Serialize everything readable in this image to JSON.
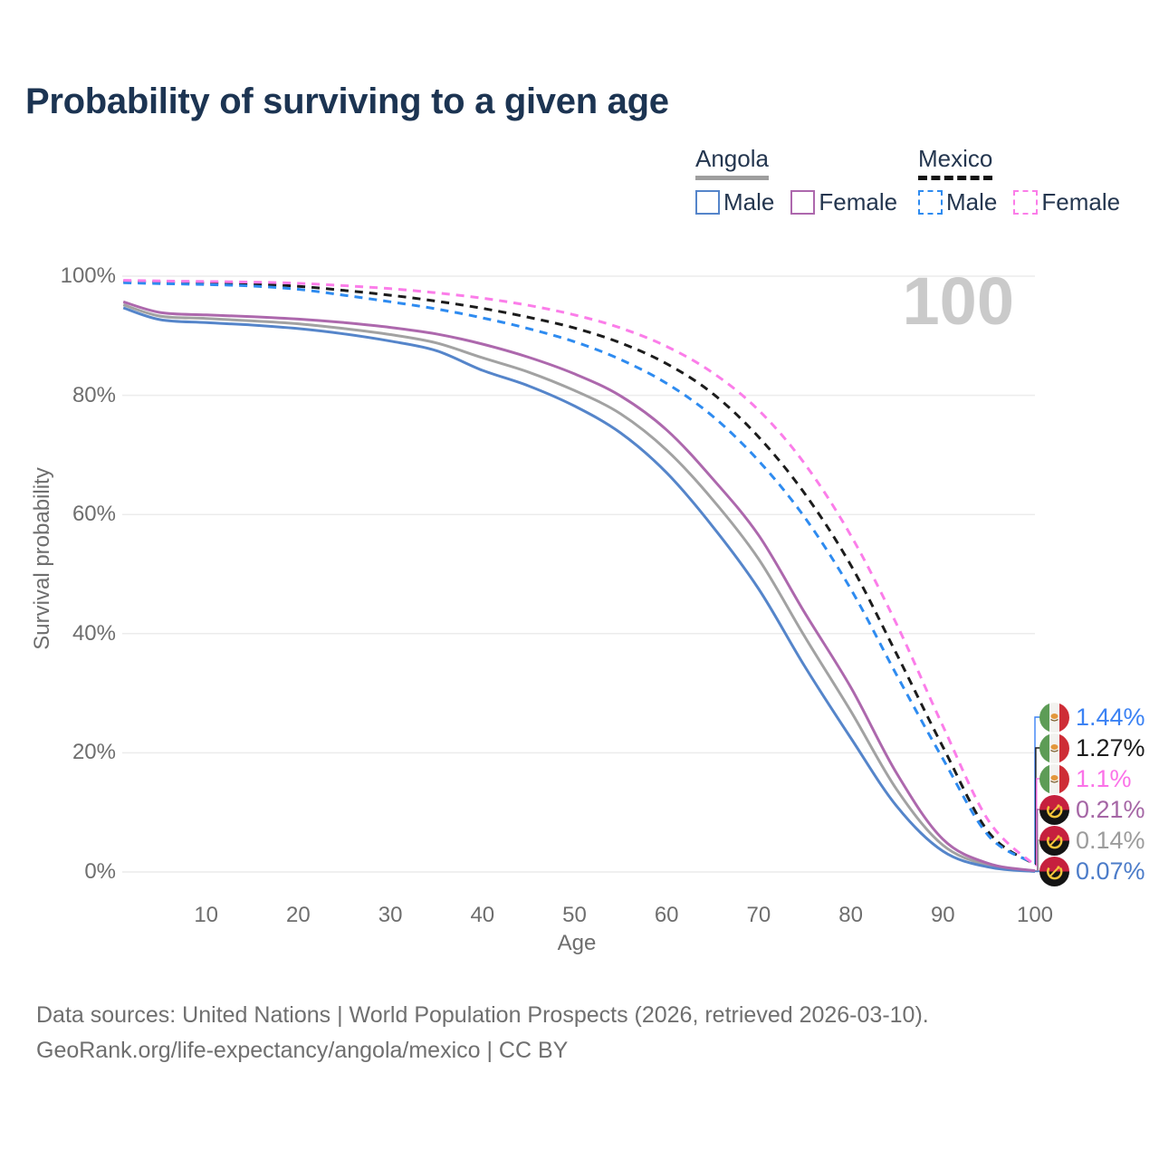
{
  "title": "Probability of surviving to a given age",
  "watermark": "100",
  "legend": {
    "groups": [
      {
        "country": "Angola",
        "style": "solid",
        "underline_color": "#9e9e9e",
        "items": [
          {
            "label": "Male",
            "color": "#5585ca"
          },
          {
            "label": "Female",
            "color": "#ad68ad"
          }
        ]
      },
      {
        "country": "Mexico",
        "style": "dashed",
        "underline_color": "#141414",
        "items": [
          {
            "label": "Male",
            "color": "#2e8bf0"
          },
          {
            "label": "Female",
            "color": "#fb7de9"
          }
        ]
      }
    ]
  },
  "chart_data": {
    "type": "line",
    "title": "Probability of surviving to a given age",
    "xlabel": "Age",
    "ylabel": "Survival probability",
    "xlim": [
      0,
      100
    ],
    "ylim": [
      0,
      100
    ],
    "grid": true,
    "x_ticks": [
      10,
      20,
      30,
      40,
      50,
      60,
      70,
      80,
      90,
      100
    ],
    "y_ticks": [
      {
        "label": "0%",
        "value": 0
      },
      {
        "label": "20%",
        "value": 20
      },
      {
        "label": "40%",
        "value": 40
      },
      {
        "label": "60%",
        "value": 60
      },
      {
        "label": "80%",
        "value": 80
      },
      {
        "label": "100%",
        "value": 100
      }
    ],
    "x": [
      1,
      5,
      10,
      15,
      20,
      25,
      30,
      35,
      40,
      45,
      50,
      55,
      60,
      65,
      70,
      75,
      80,
      85,
      90,
      95,
      100
    ],
    "series": [
      {
        "id": "mexico-male",
        "name": "Mexico Male",
        "country": "Mexico",
        "sex": "Male",
        "color": "#2e8bf0",
        "dash": true,
        "flag": "mexico",
        "end_label": "1.44%",
        "label_color": "#3b82f4",
        "values": [
          98.9,
          98.75,
          98.6,
          98.35,
          97.8,
          96.8,
          95.7,
          94.5,
          93.0,
          91.2,
          89.0,
          86.0,
          82.0,
          76.5,
          69.0,
          59.5,
          47.5,
          33.0,
          19.0,
          6.0,
          1.44
        ]
      },
      {
        "id": "mexico-both",
        "name": "Mexico (both sexes)",
        "country": "Mexico",
        "sex": "Both",
        "color": "#1c1c1c",
        "dash": true,
        "flag": "mexico",
        "end_label": "1.27%",
        "label_color": "#1c1c1c",
        "values": [
          99.1,
          99.0,
          98.85,
          98.65,
          98.3,
          97.6,
          96.8,
          95.8,
          94.6,
          93.1,
          91.3,
          88.8,
          85.3,
          80.3,
          73.0,
          63.5,
          51.5,
          36.5,
          21.0,
          6.6,
          1.27
        ]
      },
      {
        "id": "mexico-female",
        "name": "Mexico Female",
        "country": "Mexico",
        "sex": "Female",
        "color": "#fb7de9",
        "dash": true,
        "flag": "mexico",
        "end_label": "1.1%",
        "label_color": "#fb72e8",
        "values": [
          99.3,
          99.2,
          99.1,
          99.0,
          98.8,
          98.4,
          97.9,
          97.2,
          96.3,
          95.1,
          93.5,
          91.3,
          88.2,
          83.8,
          77.5,
          68.5,
          56.5,
          41.5,
          24.5,
          8.5,
          1.1
        ]
      },
      {
        "id": "angola-female",
        "name": "Angola Female",
        "country": "Angola",
        "sex": "Female",
        "color": "#ad68ad",
        "dash": false,
        "flag": "angola",
        "end_label": "0.21%",
        "label_color": "#a566a5",
        "values": [
          95.7,
          93.9,
          93.5,
          93.2,
          92.8,
          92.2,
          91.4,
          90.3,
          88.6,
          86.4,
          83.6,
          79.9,
          74.2,
          66.0,
          56.5,
          43.5,
          31.0,
          16.5,
          5.5,
          1.4,
          0.21
        ]
      },
      {
        "id": "angola-both",
        "name": "Angola (both sexes)",
        "country": "Angola",
        "sex": "Both",
        "color": "#a2a2a2",
        "dash": false,
        "flag": "angola",
        "end_label": "0.14%",
        "label_color": "#9c9c9c",
        "values": [
          95.2,
          93.3,
          92.9,
          92.5,
          92.0,
          91.2,
          90.2,
          88.8,
          86.3,
          83.9,
          80.8,
          76.9,
          70.8,
          62.5,
          52.5,
          39.5,
          27.0,
          13.8,
          4.5,
          1.1,
          0.14
        ]
      },
      {
        "id": "angola-male",
        "name": "Angola Male",
        "country": "Angola",
        "sex": "Male",
        "color": "#5585ca",
        "dash": false,
        "flag": "angola",
        "end_label": "0.07%",
        "label_color": "#4c7cc9",
        "values": [
          94.7,
          92.7,
          92.2,
          91.8,
          91.2,
          90.3,
          89.1,
          87.5,
          84.2,
          81.6,
          78.2,
          73.7,
          67.0,
          58.0,
          47.5,
          34.5,
          22.5,
          11.0,
          3.5,
          0.8,
          0.07
        ]
      }
    ]
  },
  "footer": {
    "line1": "Data sources: United Nations | World Population Prospects (2026, retrieved 2026-03-10).",
    "line2": "GeoRank.org/life-expectancy/angola/mexico | CC BY"
  }
}
